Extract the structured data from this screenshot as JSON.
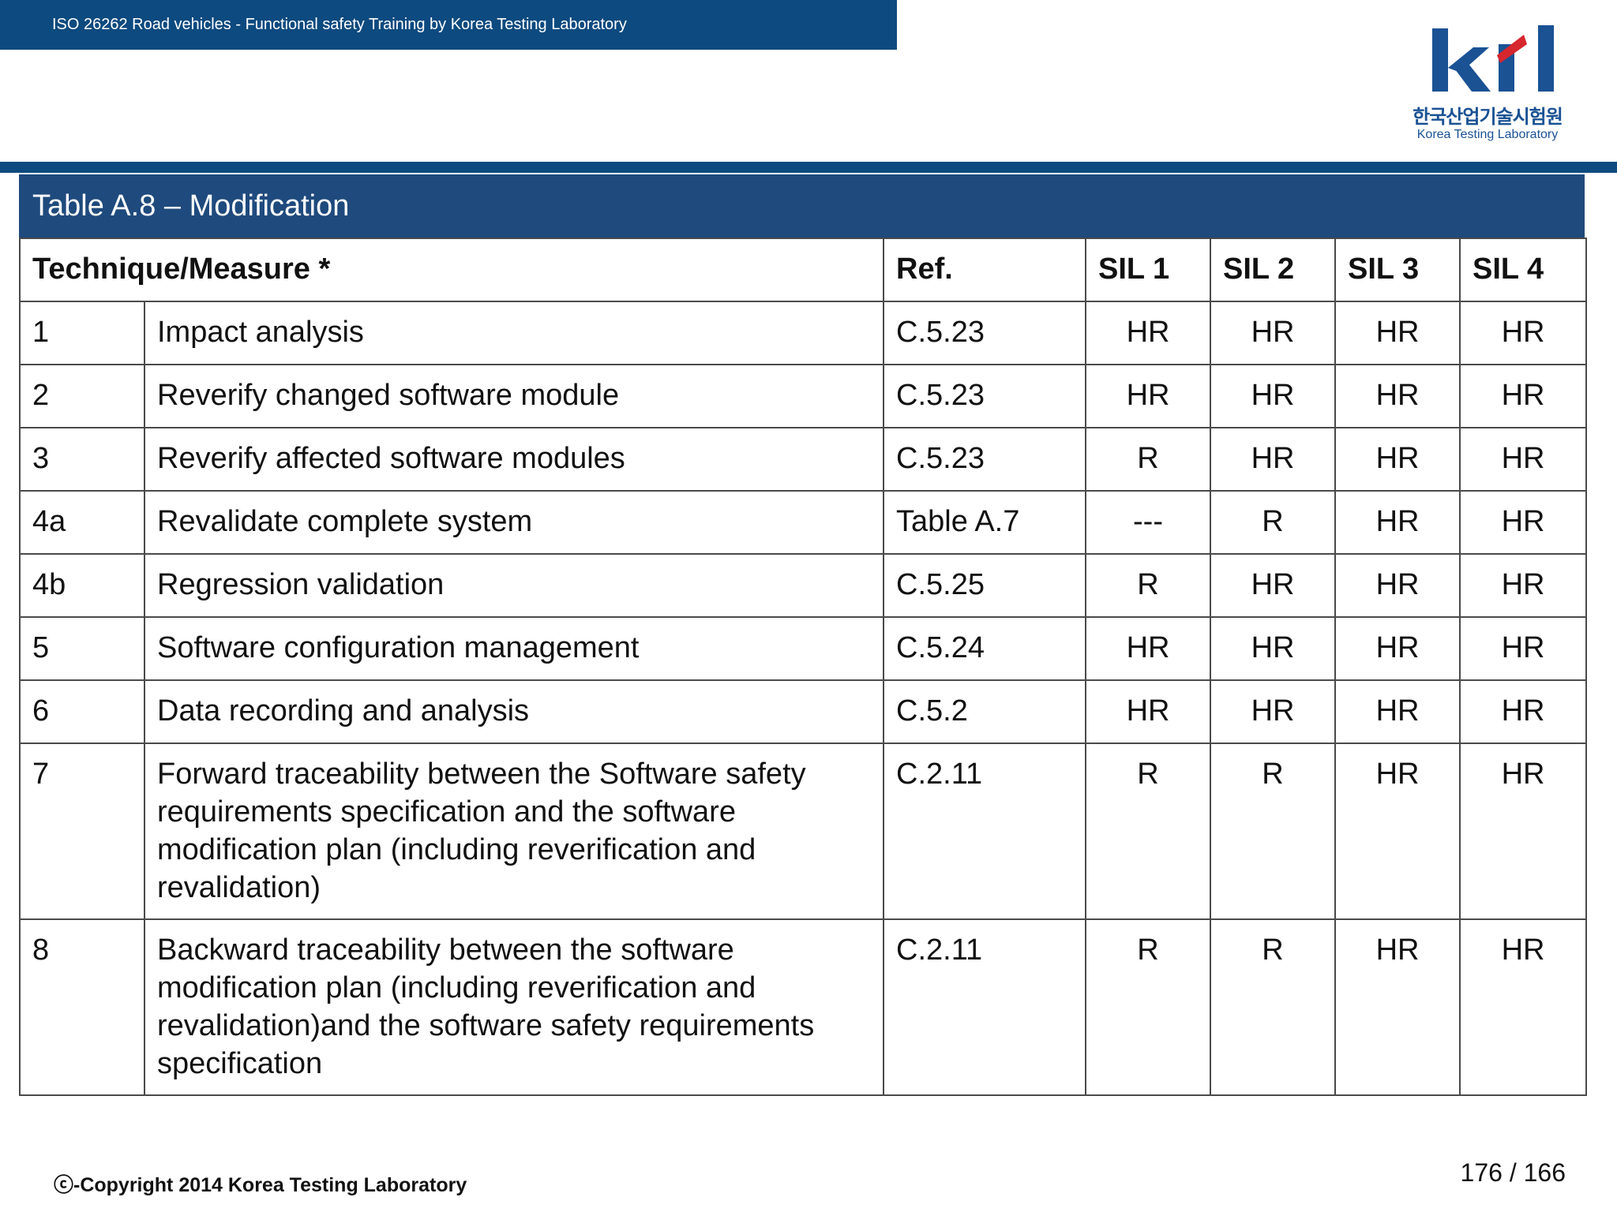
{
  "header": {
    "banner_text": "ISO 26262 Road vehicles - Functional safety Training by Korea Testing Laboratory"
  },
  "logo": {
    "mark": "ktl",
    "korean_name": "한국산업기술시험원",
    "english_name": "Korea Testing Laboratory",
    "colors": {
      "primary": "#1a5294",
      "accent": "#d6262e"
    }
  },
  "table": {
    "title": "Table A.8 – Modification",
    "columns": {
      "technique": "Technique/Measure *",
      "ref": "Ref.",
      "sil1": "SIL 1",
      "sil2": "SIL 2",
      "sil3": "SIL 3",
      "sil4": "SIL 4"
    },
    "rows": [
      {
        "id": "1",
        "technique": "Impact analysis",
        "ref": "C.5.23",
        "sil1": "HR",
        "sil2": "HR",
        "sil3": "HR",
        "sil4": "HR"
      },
      {
        "id": "2",
        "technique": "Reverify changed software module",
        "ref": "C.5.23",
        "sil1": "HR",
        "sil2": "HR",
        "sil3": "HR",
        "sil4": "HR"
      },
      {
        "id": "3",
        "technique": "Reverify affected software modules",
        "ref": "C.5.23",
        "sil1": "R",
        "sil2": "HR",
        "sil3": "HR",
        "sil4": "HR"
      },
      {
        "id": "4a",
        "technique": "Revalidate complete system",
        "ref": "Table A.7",
        "sil1": "---",
        "sil2": "R",
        "sil3": "HR",
        "sil4": "HR"
      },
      {
        "id": "4b",
        "technique": "Regression validation",
        "ref": "C.5.25",
        "sil1": "R",
        "sil2": "HR",
        "sil3": "HR",
        "sil4": "HR"
      },
      {
        "id": "5",
        "technique": "Software configuration management",
        "ref": "C.5.24",
        "sil1": "HR",
        "sil2": "HR",
        "sil3": "HR",
        "sil4": "HR"
      },
      {
        "id": "6",
        "technique": "Data recording and analysis",
        "ref": "C.5.2",
        "sil1": "HR",
        "sil2": "HR",
        "sil3": "HR",
        "sil4": "HR"
      },
      {
        "id": "7",
        "technique": "Forward traceability between the Software safety requirements specification and the software modification plan (including reverification and revalidation)",
        "ref": "C.2.11",
        "sil1": "R",
        "sil2": "R",
        "sil3": "HR",
        "sil4": "HR"
      },
      {
        "id": "8",
        "technique": "Backward traceability between the software modification plan (including reverification and revalidation)and the software safety requirements specification",
        "ref": "C.2.11",
        "sil1": "R",
        "sil2": "R",
        "sil3": "HR",
        "sil4": "HR"
      }
    ]
  },
  "footer": {
    "copyright": "ⓒ-Copyright 2014 Korea Testing Laboratory",
    "page_number": "176 / 166"
  }
}
